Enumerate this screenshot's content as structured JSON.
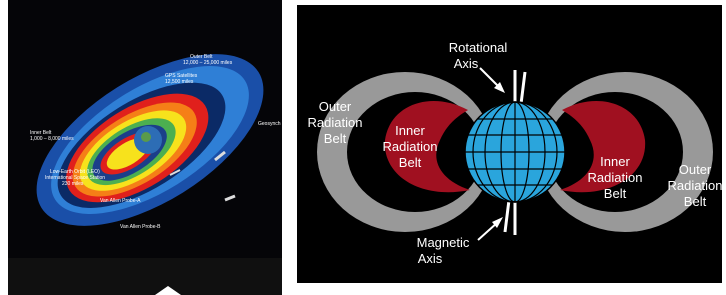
{
  "left": {
    "labels": {
      "outer_belt": [
        "Outer Belt",
        "12,000 – 25,000 miles"
      ],
      "gps": [
        "GPS Satellites",
        "12,500 miles"
      ],
      "inner_belt": [
        "Inner Belt",
        "1,000 – 8,000 miles"
      ],
      "leo": [
        "Low-Earth Orbit (LEO)",
        "International Space Station",
        "230 miles"
      ],
      "geo": [
        "Geosynch"
      ],
      "probe_a": [
        "Van Allen Probe-A"
      ],
      "probe_b": [
        "Van Allen Probe-B"
      ]
    }
  },
  "right": {
    "labels": {
      "rotational_axis": [
        "Rotational",
        "Axis"
      ],
      "outer_left": [
        "Outer",
        "Radiation",
        "Belt"
      ],
      "inner_left": [
        "Inner",
        "Radiation",
        "Belt"
      ],
      "inner_right": [
        "Inner",
        "Radiation",
        "Belt"
      ],
      "outer_right": [
        "Outer",
        "Radiation",
        "Belt"
      ],
      "magnetic_axis": [
        "Magnetic",
        "Axis"
      ]
    }
  }
}
